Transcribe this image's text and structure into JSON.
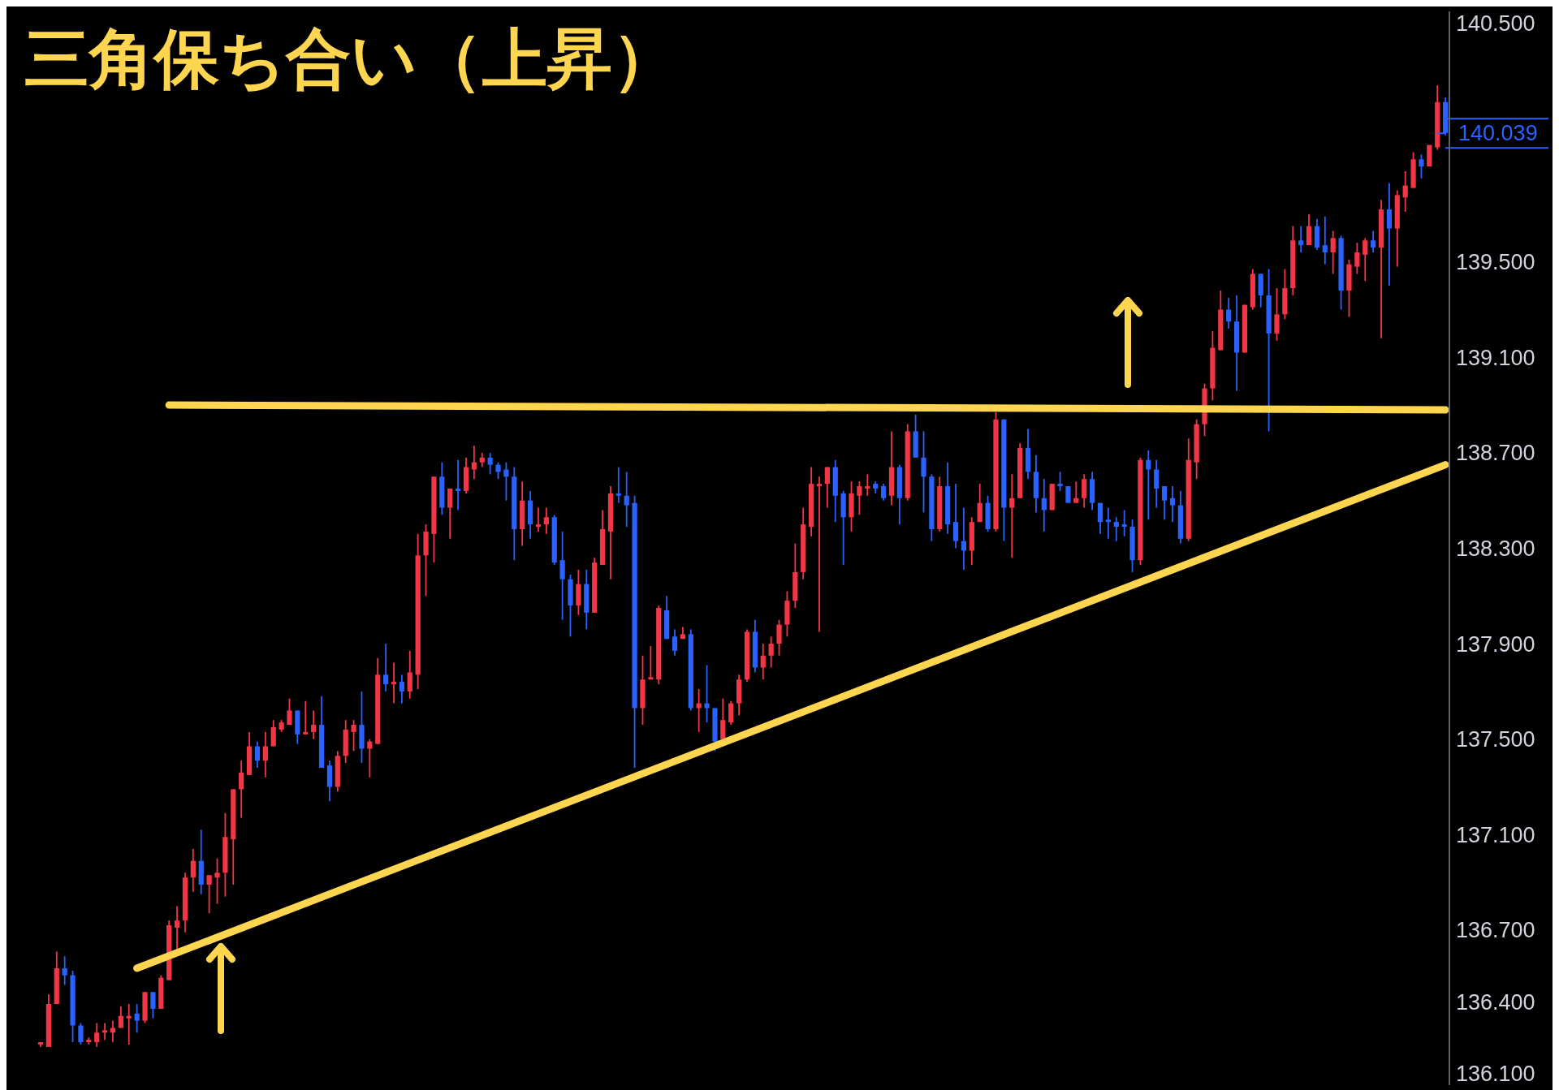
{
  "chart_data": {
    "type": "candlestick",
    "title": "三角保ち合い（上昇）",
    "categories": [
      null,
      null,
      null,
      null,
      null,
      null,
      null,
      null,
      null,
      null,
      null,
      null,
      null,
      null,
      null,
      null,
      null,
      null,
      null,
      null,
      null,
      null,
      null,
      null,
      null,
      null,
      null,
      null,
      null,
      null,
      null,
      null,
      null,
      null,
      null,
      null,
      null,
      null,
      null,
      null,
      null,
      null,
      null,
      null,
      null,
      null,
      null,
      null,
      null,
      null,
      null,
      null,
      null,
      null,
      null,
      null,
      null,
      null,
      null,
      null,
      null,
      null,
      null,
      null,
      null,
      null,
      null,
      null,
      null,
      null,
      null,
      null,
      null,
      null,
      null,
      null,
      null,
      null,
      null,
      null,
      null,
      null,
      null,
      null,
      null,
      null,
      null,
      null,
      null,
      null,
      null,
      null,
      null,
      null,
      null,
      null,
      null,
      null,
      null,
      null,
      null,
      null,
      null,
      null,
      null,
      null,
      null,
      null,
      null,
      null,
      null,
      null,
      null,
      null,
      null,
      null,
      null,
      null,
      null,
      null,
      null,
      null,
      null,
      null,
      null,
      null,
      null,
      null,
      null,
      null,
      null,
      null,
      null,
      null,
      null,
      null,
      null,
      null,
      null,
      null,
      null,
      null,
      null,
      null,
      null,
      null,
      null,
      null,
      null,
      null,
      null,
      null,
      null,
      null,
      null,
      null,
      null,
      null,
      null,
      null,
      null,
      null,
      null,
      null,
      null,
      null,
      null,
      null,
      null,
      null,
      null,
      null,
      null,
      null,
      null,
      null
    ],
    "series": [
      {
        "ohlc": [
          [
            136.22,
            136.23,
            136.21,
            136.23
          ],
          [
            136.21,
            136.43,
            136.21,
            136.39
          ],
          [
            136.39,
            136.61,
            136.39,
            136.54
          ],
          [
            136.54,
            136.59,
            136.47,
            136.51
          ],
          [
            136.51,
            136.53,
            136.23,
            136.3
          ],
          [
            136.3,
            136.31,
            136.22,
            136.23
          ],
          [
            136.23,
            136.25,
            136.22,
            136.24
          ],
          [
            136.23,
            136.31,
            136.21,
            136.27
          ],
          [
            136.27,
            136.31,
            136.24,
            136.28
          ],
          [
            136.27,
            136.32,
            136.23,
            136.29
          ],
          [
            136.29,
            136.38,
            136.29,
            136.34
          ],
          [
            136.33,
            136.39,
            136.22,
            136.34
          ],
          [
            136.35,
            136.39,
            136.27,
            136.32
          ],
          [
            136.32,
            136.44,
            136.31,
            136.44
          ],
          [
            136.44,
            136.44,
            136.33,
            136.37
          ],
          [
            136.37,
            136.51,
            136.37,
            136.5
          ],
          [
            136.49,
            136.74,
            136.49,
            136.72
          ],
          [
            136.71,
            136.8,
            136.62,
            136.74
          ],
          [
            136.74,
            136.94,
            136.69,
            136.92
          ],
          [
            136.92,
            137.04,
            136.86,
            136.99
          ],
          [
            136.99,
            137.12,
            136.85,
            136.89
          ],
          [
            136.89,
            136.93,
            136.77,
            136.93
          ],
          [
            136.92,
            137.0,
            136.81,
            136.94
          ],
          [
            136.94,
            137.19,
            136.84,
            137.09
          ],
          [
            137.08,
            137.29,
            136.89,
            137.29
          ],
          [
            137.29,
            137.41,
            137.17,
            137.36
          ],
          [
            137.35,
            137.53,
            137.35,
            137.47
          ],
          [
            137.47,
            137.49,
            137.38,
            137.41
          ],
          [
            137.41,
            137.53,
            137.34,
            137.47
          ],
          [
            137.47,
            137.58,
            137.47,
            137.55
          ],
          [
            137.54,
            137.58,
            137.53,
            137.57
          ],
          [
            137.56,
            137.67,
            137.56,
            137.62
          ],
          [
            137.62,
            137.62,
            137.48,
            137.52
          ],
          [
            137.52,
            137.66,
            137.52,
            137.53
          ],
          [
            137.53,
            137.62,
            137.5,
            137.56
          ],
          [
            137.56,
            137.68,
            137.38,
            137.38
          ],
          [
            137.39,
            137.41,
            137.24,
            137.3
          ],
          [
            137.3,
            137.45,
            137.28,
            137.43
          ],
          [
            137.43,
            137.58,
            137.4,
            137.54
          ],
          [
            137.53,
            137.58,
            137.45,
            137.56
          ],
          [
            137.56,
            137.7,
            137.4,
            137.46
          ],
          [
            137.46,
            137.5,
            137.34,
            137.49
          ],
          [
            137.48,
            137.84,
            137.48,
            137.77
          ],
          [
            137.77,
            137.9,
            137.7,
            137.73
          ],
          [
            137.73,
            137.82,
            137.65,
            137.74
          ],
          [
            137.74,
            137.77,
            137.65,
            137.7
          ],
          [
            137.7,
            137.87,
            137.67,
            137.78
          ],
          [
            137.77,
            138.36,
            137.71,
            138.27
          ],
          [
            138.27,
            138.4,
            138.1,
            138.37
          ],
          [
            138.36,
            138.6,
            138.24,
            138.6
          ],
          [
            138.6,
            138.66,
            138.44,
            138.47
          ],
          [
            138.47,
            138.55,
            138.34,
            138.55
          ],
          [
            138.55,
            138.67,
            138.46,
            138.54
          ],
          [
            138.54,
            138.68,
            138.53,
            138.64
          ],
          [
            138.63,
            138.73,
            138.59,
            138.66
          ],
          [
            138.66,
            138.7,
            138.64,
            138.68
          ],
          [
            138.68,
            138.7,
            138.61,
            138.65
          ],
          [
            138.65,
            138.66,
            138.59,
            138.62
          ],
          [
            138.63,
            138.66,
            138.5,
            138.6
          ],
          [
            138.6,
            138.64,
            138.25,
            138.38
          ],
          [
            138.38,
            138.58,
            138.31,
            138.5
          ],
          [
            138.5,
            138.54,
            138.34,
            138.4
          ],
          [
            138.39,
            138.47,
            138.37,
            138.4
          ],
          [
            138.4,
            138.47,
            138.36,
            138.43
          ],
          [
            138.43,
            138.44,
            138.23,
            138.24
          ],
          [
            138.25,
            138.37,
            138.0,
            138.17
          ],
          [
            138.17,
            138.19,
            137.93,
            138.06
          ],
          [
            138.06,
            138.21,
            138.02,
            138.15
          ],
          [
            138.15,
            138.21,
            137.96,
            138.03
          ],
          [
            138.03,
            138.26,
            138.03,
            138.24
          ],
          [
            138.23,
            138.46,
            138.23,
            138.38
          ],
          [
            138.37,
            138.56,
            138.17,
            138.53
          ],
          [
            138.53,
            138.64,
            138.49,
            138.52
          ],
          [
            138.52,
            138.62,
            138.39,
            138.48
          ],
          [
            138.49,
            138.52,
            137.38,
            137.63
          ],
          [
            137.63,
            137.85,
            137.56,
            137.75
          ],
          [
            137.75,
            137.89,
            137.75,
            137.76
          ],
          [
            137.75,
            138.06,
            137.73,
            138.05
          ],
          [
            138.04,
            138.1,
            137.92,
            137.92
          ],
          [
            137.93,
            137.96,
            137.85,
            137.87
          ],
          [
            137.92,
            137.97,
            137.92,
            137.94
          ],
          [
            137.94,
            137.96,
            137.62,
            137.63
          ],
          [
            137.63,
            137.71,
            137.53,
            137.65
          ],
          [
            137.65,
            137.81,
            137.57,
            137.63
          ],
          [
            137.63,
            137.63,
            137.45,
            137.49
          ],
          [
            137.5,
            137.67,
            137.5,
            137.58
          ],
          [
            137.57,
            137.66,
            137.56,
            137.65
          ],
          [
            137.65,
            137.77,
            137.6,
            137.75
          ],
          [
            137.75,
            137.96,
            137.74,
            137.95
          ],
          [
            137.95,
            138.0,
            137.78,
            137.8
          ],
          [
            137.8,
            137.9,
            137.75,
            137.85
          ],
          [
            137.85,
            137.93,
            137.8,
            137.9
          ],
          [
            137.9,
            138.0,
            137.85,
            137.98
          ],
          [
            137.98,
            138.12,
            137.93,
            138.08
          ],
          [
            138.08,
            138.32,
            138.05,
            138.2
          ],
          [
            138.2,
            138.47,
            138.17,
            138.4
          ],
          [
            138.39,
            138.64,
            138.35,
            138.57
          ],
          [
            138.56,
            138.6,
            137.95,
            138.57
          ],
          [
            138.57,
            138.64,
            138.47,
            138.64
          ],
          [
            138.64,
            138.67,
            138.41,
            138.52
          ],
          [
            138.53,
            138.54,
            138.23,
            138.43
          ],
          [
            138.43,
            138.58,
            138.37,
            138.53
          ],
          [
            138.52,
            138.58,
            138.44,
            138.56
          ],
          [
            138.55,
            138.61,
            138.52,
            138.56
          ],
          [
            138.57,
            138.58,
            138.53,
            138.55
          ],
          [
            138.56,
            138.57,
            138.5,
            138.51
          ],
          [
            138.52,
            138.79,
            138.48,
            138.64
          ],
          [
            138.64,
            138.65,
            138.4,
            138.51
          ],
          [
            138.51,
            138.82,
            138.5,
            138.79
          ],
          [
            138.79,
            138.86,
            138.68,
            138.68
          ],
          [
            138.68,
            138.79,
            138.45,
            138.6
          ],
          [
            138.6,
            138.61,
            138.33,
            138.38
          ],
          [
            138.38,
            138.6,
            138.37,
            138.56
          ],
          [
            138.56,
            138.66,
            138.36,
            138.4
          ],
          [
            138.41,
            138.57,
            138.3,
            138.33
          ],
          [
            138.33,
            138.47,
            138.21,
            138.29
          ],
          [
            138.29,
            138.43,
            138.23,
            138.41
          ],
          [
            138.41,
            138.57,
            138.41,
            138.49
          ],
          [
            138.49,
            138.52,
            138.37,
            138.38
          ],
          [
            138.38,
            138.87,
            138.37,
            138.84
          ],
          [
            138.84,
            138.84,
            138.33,
            138.47
          ],
          [
            138.47,
            138.61,
            138.26,
            138.51
          ],
          [
            138.51,
            138.74,
            138.51,
            138.72
          ],
          [
            138.72,
            138.8,
            138.59,
            138.62
          ],
          [
            138.62,
            138.69,
            138.45,
            138.51
          ],
          [
            138.51,
            138.59,
            138.37,
            138.46
          ],
          [
            138.46,
            138.57,
            138.46,
            138.57
          ],
          [
            138.57,
            138.62,
            138.54,
            138.56
          ],
          [
            138.56,
            138.56,
            138.49,
            138.49
          ],
          [
            138.49,
            138.58,
            138.49,
            138.51
          ],
          [
            138.51,
            138.61,
            138.47,
            138.59
          ],
          [
            138.59,
            138.62,
            138.46,
            138.49
          ],
          [
            138.49,
            138.49,
            138.36,
            138.41
          ],
          [
            138.42,
            138.47,
            138.34,
            138.41
          ],
          [
            138.41,
            138.43,
            138.33,
            138.39
          ],
          [
            138.4,
            138.46,
            138.35,
            138.39
          ],
          [
            138.39,
            138.42,
            138.2,
            138.25
          ],
          [
            138.25,
            138.68,
            138.23,
            138.67
          ],
          [
            138.67,
            138.71,
            138.42,
            138.63
          ],
          [
            138.63,
            138.67,
            138.47,
            138.55
          ],
          [
            138.56,
            138.56,
            138.42,
            138.5
          ],
          [
            138.51,
            138.56,
            138.41,
            138.48
          ],
          [
            138.48,
            138.54,
            138.32,
            138.34
          ],
          [
            138.34,
            138.76,
            138.33,
            138.67
          ],
          [
            138.66,
            138.84,
            138.59,
            138.82
          ],
          [
            138.82,
            138.99,
            138.77,
            138.97
          ],
          [
            138.97,
            139.21,
            138.92,
            139.14
          ],
          [
            139.13,
            139.38,
            139.13,
            139.3
          ],
          [
            139.3,
            139.35,
            139.22,
            139.25
          ],
          [
            139.25,
            139.36,
            138.96,
            139.12
          ],
          [
            139.12,
            139.32,
            139.12,
            139.32
          ],
          [
            139.31,
            139.47,
            139.3,
            139.45
          ],
          [
            139.45,
            139.45,
            139.31,
            139.36
          ],
          [
            139.36,
            139.47,
            138.79,
            139.2
          ],
          [
            139.2,
            139.39,
            139.17,
            139.28
          ],
          [
            139.28,
            139.47,
            139.26,
            139.39
          ],
          [
            139.39,
            139.65,
            139.36,
            139.59
          ],
          [
            139.59,
            139.65,
            139.54,
            139.57
          ],
          [
            139.57,
            139.7,
            139.57,
            139.65
          ],
          [
            139.65,
            139.68,
            139.55,
            139.56
          ],
          [
            139.57,
            139.69,
            139.49,
            139.54
          ],
          [
            139.54,
            139.63,
            139.45,
            139.6
          ],
          [
            139.6,
            139.61,
            139.3,
            139.38
          ],
          [
            139.38,
            139.51,
            139.27,
            139.49
          ],
          [
            139.48,
            139.58,
            139.45,
            139.54
          ],
          [
            139.53,
            139.6,
            139.42,
            139.59
          ],
          [
            139.59,
            139.63,
            139.54,
            139.56
          ],
          [
            139.56,
            139.76,
            139.18,
            139.72
          ],
          [
            139.72,
            139.83,
            139.4,
            139.64
          ],
          [
            139.64,
            139.8,
            139.48,
            139.78
          ],
          [
            139.77,
            139.88,
            139.71,
            139.82
          ],
          [
            139.81,
            139.96,
            139.81,
            139.93
          ],
          [
            139.93,
            139.95,
            139.85,
            139.9
          ],
          [
            139.9,
            139.99,
            139.9,
            139.99
          ],
          [
            139.98,
            140.24,
            139.97,
            140.17
          ],
          [
            140.17,
            140.19,
            140.03,
            140.04
          ]
        ],
        "colors": [
          "#f23645",
          "#f23645",
          "#f23645",
          "#2962ff",
          "#2962ff",
          "#2962ff",
          "#f23645",
          "#f23645",
          "#f23645",
          "#f23645",
          "#f23645",
          "#f23645",
          "#2962ff",
          "#f23645",
          "#2962ff",
          "#f23645",
          "#f23645",
          "#f23645",
          "#f23645",
          "#f23645",
          "#2962ff",
          "#f23645",
          "#f23645",
          "#f23645",
          "#f23645",
          "#f23645",
          "#f23645",
          "#2962ff",
          "#f23645",
          "#f23645",
          "#f23645",
          "#f23645",
          "#2962ff",
          "#f23645",
          "#f23645",
          "#2962ff",
          "#2962ff",
          "#f23645",
          "#f23645",
          "#f23645",
          "#2962ff",
          "#f23645",
          "#f23645",
          "#2962ff",
          "#f23645",
          "#2962ff",
          "#f23645",
          "#f23645",
          "#f23645",
          "#f23645",
          "#2962ff",
          "#f23645",
          "#2962ff",
          "#f23645",
          "#f23645",
          "#f23645",
          "#2962ff",
          "#2962ff",
          "#2962ff",
          "#2962ff",
          "#f23645",
          "#2962ff",
          "#f23645",
          "#f23645",
          "#2962ff",
          "#2962ff",
          "#2962ff",
          "#f23645",
          "#2962ff",
          "#f23645",
          "#f23645",
          "#f23645",
          "#2962ff",
          "#2962ff",
          "#2962ff",
          "#f23645",
          "#f23645",
          "#f23645",
          "#2962ff",
          "#2962ff",
          "#f23645",
          "#2962ff",
          "#f23645",
          "#2962ff",
          "#2962ff",
          "#f23645",
          "#f23645",
          "#f23645",
          "#f23645",
          "#2962ff",
          "#f23645",
          "#f23645",
          "#f23645",
          "#f23645",
          "#f23645",
          "#f23645",
          "#f23645",
          "#f23645",
          "#f23645",
          "#2962ff",
          "#2962ff",
          "#f23645",
          "#f23645",
          "#f23645",
          "#2962ff",
          "#2962ff",
          "#f23645",
          "#2962ff",
          "#f23645",
          "#2962ff",
          "#2962ff",
          "#2962ff",
          "#f23645",
          "#2962ff",
          "#2962ff",
          "#2962ff",
          "#f23645",
          "#f23645",
          "#2962ff",
          "#f23645",
          "#2962ff",
          "#f23645",
          "#f23645",
          "#2962ff",
          "#2962ff",
          "#2962ff",
          "#f23645",
          "#2962ff",
          "#2962ff",
          "#f23645",
          "#f23645",
          "#2962ff",
          "#2962ff",
          "#2962ff",
          "#2962ff",
          "#2962ff",
          "#2962ff",
          "#f23645",
          "#2962ff",
          "#2962ff",
          "#2962ff",
          "#2962ff",
          "#2962ff",
          "#f23645",
          "#f23645",
          "#f23645",
          "#f23645",
          "#f23645",
          "#2962ff",
          "#2962ff",
          "#f23645",
          "#f23645",
          "#2962ff",
          "#2962ff",
          "#f23645",
          "#f23645",
          "#f23645",
          "#2962ff",
          "#f23645",
          "#2962ff",
          "#2962ff",
          "#f23645",
          "#2962ff",
          "#f23645",
          "#f23645",
          "#f23645",
          "#2962ff",
          "#f23645",
          "#2962ff",
          "#f23645",
          "#f23645",
          "#f23645",
          "#2962ff",
          "#f23645",
          "#f23645",
          "#2962ff"
        ]
      },
      {
        "type": "line",
        "color": "#fdd54f",
        "values": [
          null,
          null,
          null,
          null,
          null,
          null,
          null,
          null,
          null,
          null,
          null,
          null,
          null,
          null,
          null,
          null,
          138.9,
          null,
          null,
          null,
          null,
          null,
          null,
          null,
          null,
          null,
          null,
          null,
          null,
          null,
          null,
          null,
          null,
          null,
          null,
          null,
          null,
          null,
          null,
          null,
          null,
          null,
          null,
          null,
          null,
          null,
          null,
          null,
          null,
          null,
          null,
          null,
          null,
          null,
          null,
          null,
          null,
          null,
          null,
          null,
          null,
          null,
          null,
          null,
          null,
          null,
          null,
          null,
          null,
          null,
          null,
          null,
          null,
          null,
          null,
          null,
          null,
          null,
          null,
          null,
          null,
          null,
          null,
          null,
          null,
          null,
          null,
          null,
          null,
          null,
          null,
          null,
          null,
          null,
          null,
          null,
          null,
          null,
          null,
          null,
          null,
          null,
          null,
          null,
          null,
          null,
          null,
          null,
          null,
          null,
          null,
          null,
          null,
          null,
          null,
          null,
          null,
          null,
          null,
          null,
          null,
          null,
          null,
          null,
          null,
          null,
          null,
          null,
          null,
          null,
          null,
          null,
          null,
          null,
          null,
          null,
          null,
          null,
          null,
          null,
          null,
          null,
          null,
          null,
          null,
          null,
          null,
          null,
          null,
          null,
          null,
          null,
          null,
          null,
          null,
          null,
          null,
          null,
          null,
          null,
          null,
          null,
          null,
          null,
          null,
          null,
          null,
          null,
          null,
          null,
          null,
          null,
          null,
          null,
          null,
          138.88
        ]
      },
      {
        "type": "line",
        "color": "#fdd54f",
        "values": [
          null,
          null,
          null,
          null,
          null,
          null,
          null,
          null,
          null,
          null,
          null,
          null,
          136.54,
          null,
          null,
          null,
          null,
          null,
          null,
          null,
          null,
          null,
          null,
          null,
          null,
          null,
          null,
          null,
          null,
          null,
          null,
          null,
          null,
          null,
          null,
          null,
          null,
          null,
          null,
          null,
          null,
          null,
          null,
          null,
          null,
          null,
          null,
          null,
          null,
          null,
          null,
          null,
          null,
          null,
          null,
          null,
          null,
          null,
          null,
          null,
          null,
          null,
          null,
          null,
          null,
          null,
          null,
          null,
          null,
          null,
          null,
          null,
          null,
          null,
          null,
          null,
          null,
          null,
          null,
          null,
          null,
          null,
          null,
          null,
          null,
          null,
          null,
          null,
          null,
          null,
          null,
          null,
          null,
          null,
          null,
          null,
          null,
          null,
          null,
          null,
          null,
          null,
          null,
          null,
          null,
          null,
          null,
          null,
          null,
          null,
          null,
          null,
          null,
          null,
          null,
          null,
          null,
          null,
          null,
          null,
          null,
          null,
          null,
          null,
          null,
          null,
          null,
          null,
          null,
          null,
          null,
          null,
          null,
          null,
          null,
          null,
          null,
          null,
          null,
          null,
          null,
          null,
          null,
          null,
          null,
          null,
          null,
          null,
          null,
          null,
          null,
          null,
          null,
          null,
          null,
          null,
          null,
          null,
          null,
          null,
          null,
          null,
          null,
          null,
          null,
          null,
          null,
          null,
          null,
          null,
          null,
          null,
          null,
          null,
          null,
          138.65
        ]
      }
    ],
    "ylim": [
      136.05,
      140.55
    ],
    "yticks": [
      {
        "value": 136.1,
        "label": "136.100"
      },
      {
        "value": 136.4,
        "label": "136.400"
      },
      {
        "value": 136.7,
        "label": "136.700"
      },
      {
        "value": 137.1,
        "label": "137.100"
      },
      {
        "value": 137.5,
        "label": "137.500"
      },
      {
        "value": 137.9,
        "label": "137.900"
      },
      {
        "value": 138.3,
        "label": "138.300"
      },
      {
        "value": 138.7,
        "label": "138.700"
      },
      {
        "value": 139.1,
        "label": "139.100"
      },
      {
        "value": 139.5,
        "label": "139.500"
      },
      {
        "value": 140.5,
        "label": "140.500"
      }
    ],
    "ref_lines": [
      {
        "axis": "y",
        "value": 140.039,
        "label": "140.039",
        "color": "#2962ff"
      }
    ],
    "tick_labels": "y"
  }
}
